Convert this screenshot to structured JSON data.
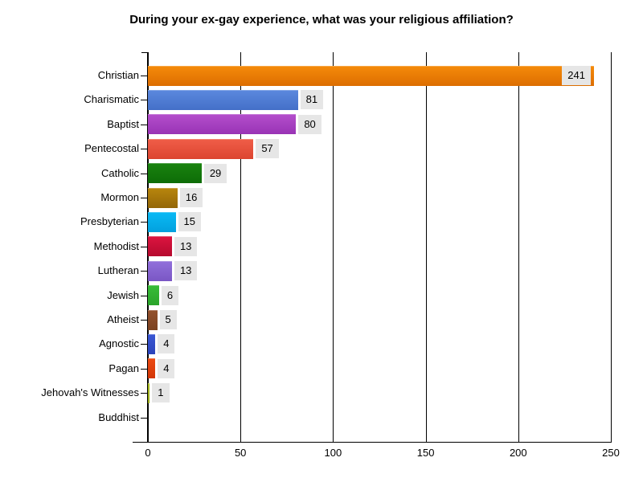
{
  "title": "During your ex-gay experience, what was your religious affiliation?",
  "chart_data": {
    "type": "bar",
    "orientation": "horizontal",
    "title": "During your ex-gay experience, what was your religious affiliation?",
    "categories": [
      "Christian",
      "Charismatic",
      "Baptist",
      "Pentecostal",
      "Catholic",
      "Mormon",
      "Presbyterian",
      "Methodist",
      "Lutheran",
      "Jewish",
      "Atheist",
      "Agnostic",
      "Pagan",
      "Jehovah's Witnesses",
      "Buddhist"
    ],
    "values": [
      241,
      81,
      80,
      57,
      29,
      16,
      15,
      13,
      13,
      6,
      5,
      4,
      4,
      1,
      0
    ],
    "data_labels": [
      "241",
      "81",
      "80",
      "57",
      "29",
      "16",
      "15",
      "13",
      "13",
      "6",
      "5",
      "4",
      "4",
      "1",
      ""
    ],
    "xlim": [
      0,
      250
    ],
    "x_ticks": [
      0,
      50,
      100,
      150,
      200,
      250
    ],
    "x_tick_labels": [
      "0",
      "50",
      "100",
      "150",
      "200",
      "250"
    ],
    "grid": "vertical-black-lines",
    "legend": "none",
    "background": "#FFFFFF",
    "axis_color": "#000000",
    "value_label_bg": "#E6E6E6",
    "value_label_color": "#000000",
    "bar_colors": [
      {
        "top": "#F68B0A",
        "bottom": "#DC6D00"
      },
      {
        "top": "#5B89DE",
        "bottom": "#4470C8"
      },
      {
        "top": "#B44FCC",
        "bottom": "#9933B5"
      },
      {
        "top": "#F05E48",
        "bottom": "#DC4530"
      },
      {
        "top": "#1A830F",
        "bottom": "#0D6C07"
      },
      {
        "top": "#B8860D",
        "bottom": "#946708"
      },
      {
        "top": "#0ABAF5",
        "bottom": "#02A0DE"
      },
      {
        "top": "#DC1440",
        "bottom": "#B60A2E"
      },
      {
        "top": "#9170DB",
        "bottom": "#7A56C4"
      },
      {
        "top": "#38BC38",
        "bottom": "#2AA42A"
      },
      {
        "top": "#95522E",
        "bottom": "#7C4220"
      },
      {
        "top": "#3A57D4",
        "bottom": "#2B43BA"
      },
      {
        "top": "#EC4A12",
        "bottom": "#D23606"
      },
      {
        "top": "#A9BC20",
        "bottom": "#96A714"
      },
      null
    ]
  }
}
